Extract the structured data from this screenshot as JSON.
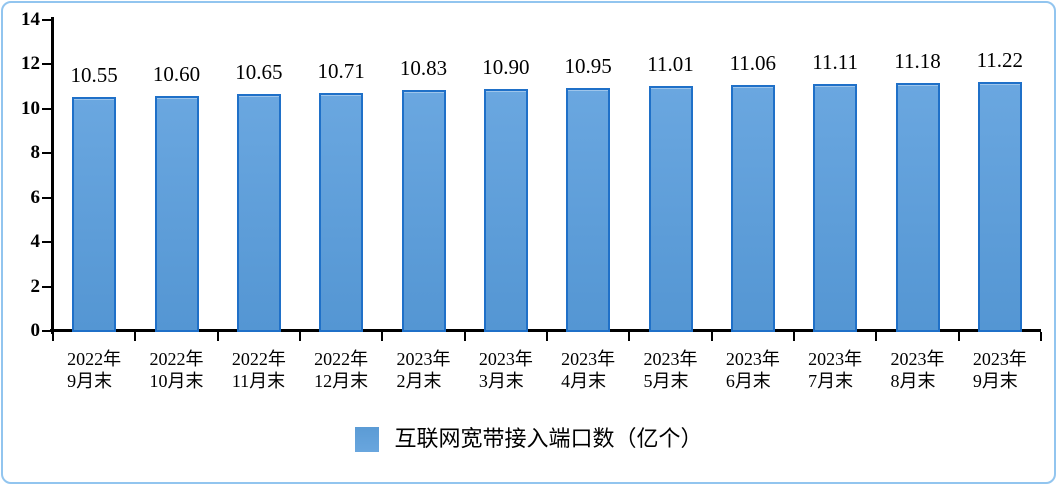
{
  "chart_data": {
    "type": "bar",
    "title": "",
    "categories": [
      "2022年9月末",
      "2022年10月末",
      "2022年11月末",
      "2022年12月末",
      "2023年2月末",
      "2023年3月末",
      "2023年4月末",
      "2023年5月末",
      "2023年6月末",
      "2023年7月末",
      "2023年8月末",
      "2023年9月末"
    ],
    "values": [
      10.55,
      10.6,
      10.65,
      10.71,
      10.83,
      10.9,
      10.95,
      11.01,
      11.06,
      11.11,
      11.18,
      11.22
    ],
    "series_name": "互联网宽带接入端口数（亿个）",
    "data_labels": [
      "10.55",
      "10.60",
      "10.65",
      "10.71",
      "10.83",
      "10.90",
      "10.95",
      "11.01",
      "11.06",
      "11.11",
      "11.18",
      "11.22"
    ],
    "ylim": [
      0,
      14
    ],
    "y_ticks": [
      0,
      2,
      4,
      6,
      8,
      10,
      12,
      14
    ],
    "grid": false,
    "legend_position": "bottom",
    "xlabel": "",
    "ylabel": ""
  },
  "legend": {
    "label": "互联网宽带接入端口数（亿个）",
    "swatch_color": "#5b9bd5"
  },
  "colors": {
    "bar_fill": "#5b9fd8",
    "bar_border": "#1f70c8",
    "frame_border": "#92c5ef",
    "axis": "#000000",
    "text": "#000000"
  }
}
